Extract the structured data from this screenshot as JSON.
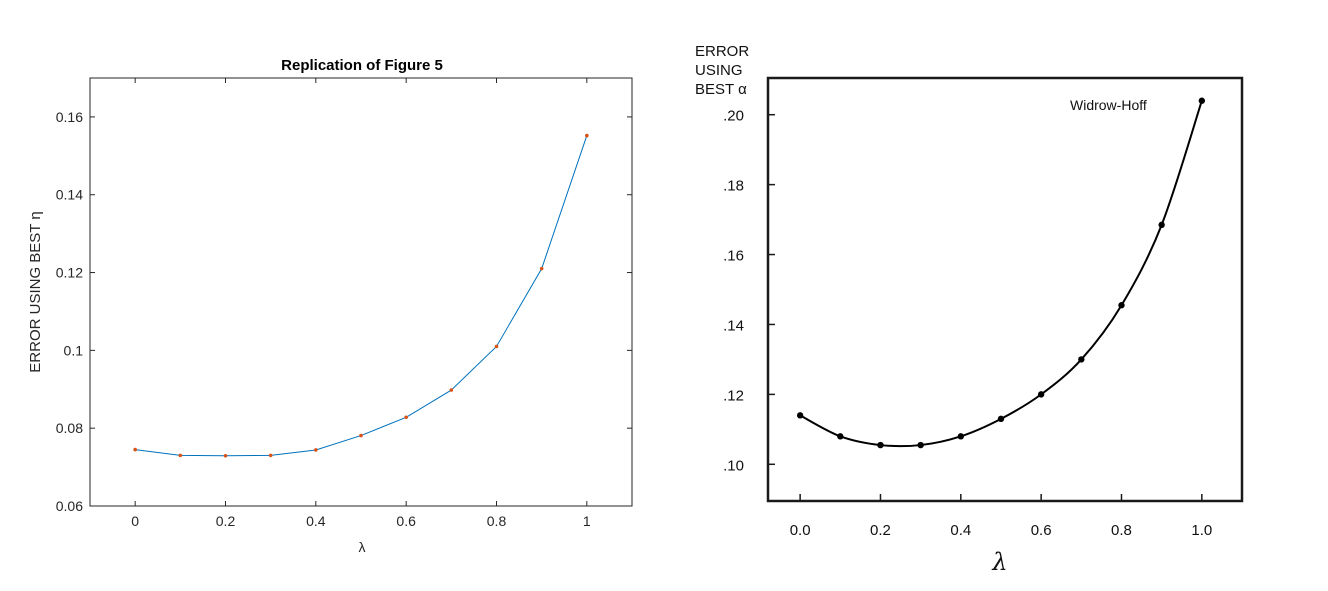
{
  "chart_data": [
    {
      "type": "line",
      "title": "Replication of Figure 5",
      "xlabel": "λ",
      "ylabel": "ERROR USING BEST η",
      "xlim": [
        -0.1,
        1.1
      ],
      "ylim": [
        0.06,
        0.17
      ],
      "x_ticks": [
        "0",
        "0.2",
        "0.4",
        "0.6",
        "0.8",
        "1"
      ],
      "y_ticks": [
        "0.06",
        "0.08",
        "0.1",
        "0.12",
        "0.14",
        "0.16"
      ],
      "grid": false,
      "line_color": "#0072BD",
      "marker_color": "#D95319",
      "x": [
        0,
        0.1,
        0.2,
        0.3,
        0.4,
        0.5,
        0.6,
        0.7,
        0.8,
        0.9,
        1.0
      ],
      "series": [
        {
          "values": [
            0.0745,
            0.073,
            0.0729,
            0.073,
            0.0744,
            0.0781,
            0.0828,
            0.0898,
            0.101,
            0.121,
            0.1552
          ]
        }
      ]
    },
    {
      "type": "line",
      "ylabel_lines": [
        "ERROR",
        "USING",
        "BEST α"
      ],
      "xlabel": "λ",
      "annotation": "Widrow-Hoff",
      "xlim": [
        -0.08,
        1.1
      ],
      "ylim": [
        0.0895,
        0.2105
      ],
      "x_ticks": [
        "0.0",
        "0.2",
        "0.4",
        "0.6",
        "0.8",
        "1.0"
      ],
      "y_ticks": [
        ".10",
        ".12",
        ".14",
        ".16",
        ".18",
        ".20"
      ],
      "grid": false,
      "line_color": "#000000",
      "x": [
        0,
        0.1,
        0.2,
        0.3,
        0.4,
        0.5,
        0.6,
        0.7,
        0.8,
        0.9,
        1.0
      ],
      "series": [
        {
          "values": [
            0.114,
            0.108,
            0.1055,
            0.1055,
            0.108,
            0.113,
            0.12,
            0.13,
            0.1455,
            0.1685,
            0.204
          ]
        }
      ]
    }
  ]
}
